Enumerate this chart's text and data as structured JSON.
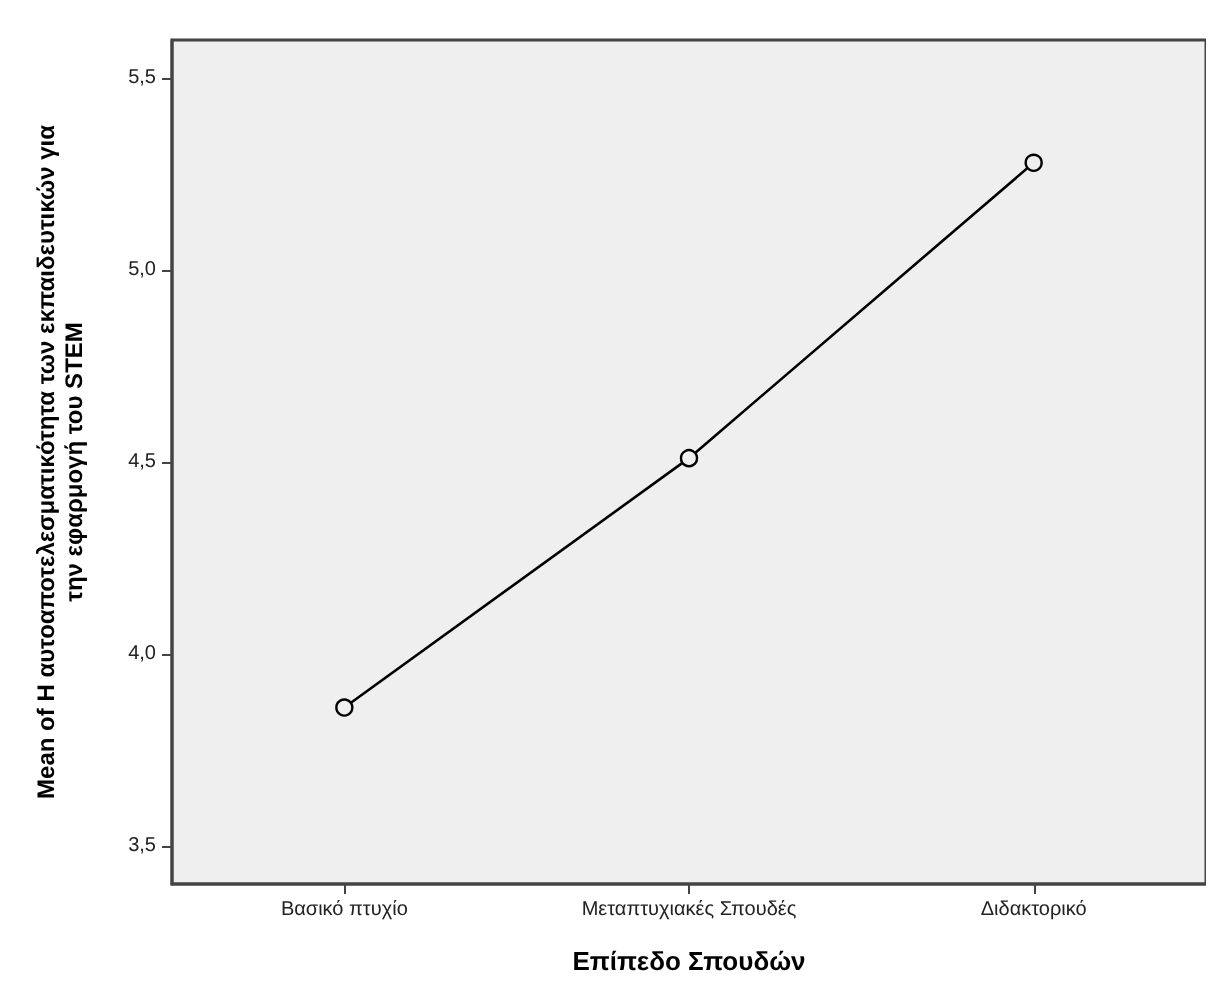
{
  "chart_data": {
    "type": "line",
    "xlabel": "Επίπεδο Σπουδών",
    "ylabel": "Mean of Η αυτοαποτελεσματικότητα των εκπαιδευτικών για\nτην εφαρμογή του STEM",
    "categories": [
      "Βασικό πτυχίο",
      "Μεταπτυχιακές Σπουδές",
      "Διδακτορικό"
    ],
    "series": [
      {
        "color": "#000000",
        "values": [
          3.86,
          4.51,
          5.28
        ]
      }
    ],
    "ylim": [
      3.4,
      5.6
    ],
    "yticks": [
      {
        "value": 3.5,
        "label": "3,5"
      },
      {
        "value": 4.0,
        "label": "4,0"
      },
      {
        "value": 4.5,
        "label": "4,5"
      },
      {
        "value": 5.0,
        "label": "5,0"
      },
      {
        "value": 5.5,
        "label": "5,5"
      }
    ],
    "grid": false,
    "marker": "circle",
    "line_style": "solid"
  }
}
